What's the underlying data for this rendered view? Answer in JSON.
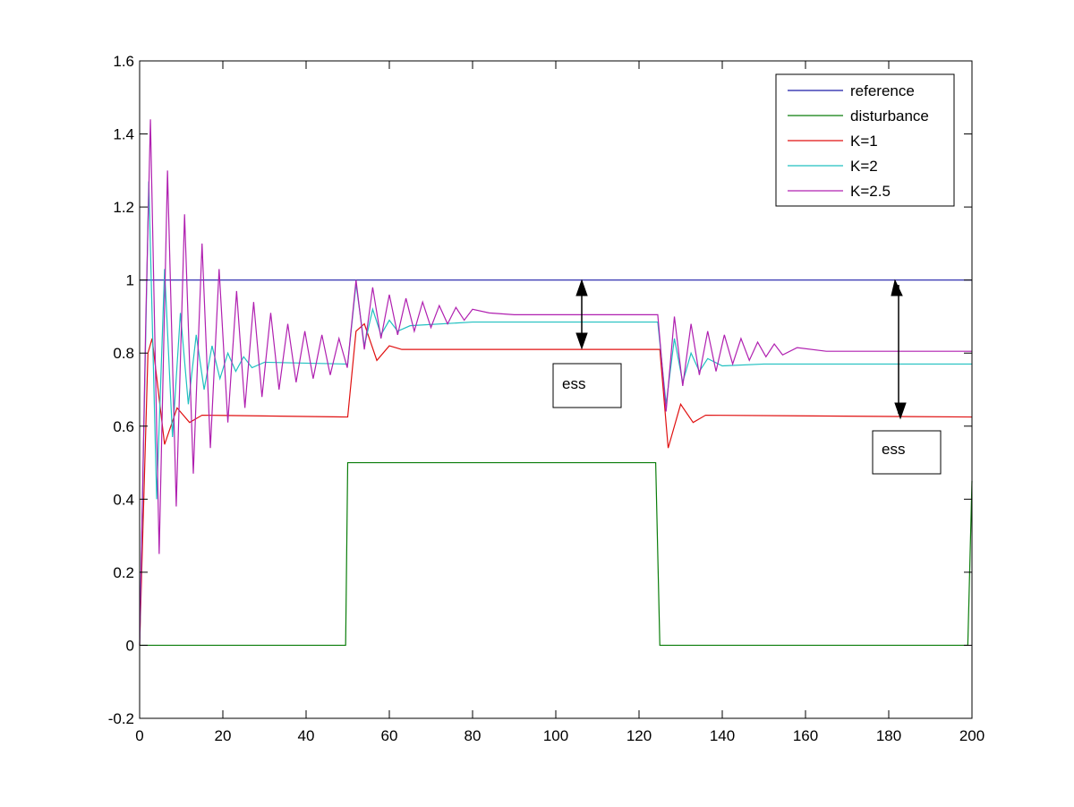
{
  "chart_data": {
    "type": "line",
    "xlim": [
      0,
      200
    ],
    "ylim": [
      -0.2,
      1.6
    ],
    "xticks": [
      0,
      20,
      40,
      60,
      80,
      100,
      120,
      140,
      160,
      180,
      200
    ],
    "yticks": [
      -0.2,
      0,
      0.2,
      0.4,
      0.6,
      0.8,
      1,
      1.2,
      1.4,
      1.6
    ],
    "legend": "northeast",
    "annotations": [
      "ess",
      "ess"
    ],
    "series": [
      {
        "name": "reference",
        "color": "#1c1ca8",
        "x": [
          0,
          200
        ],
        "values": [
          1,
          1
        ]
      },
      {
        "name": "disturbance",
        "color": "#0a7d0a",
        "x": [
          0,
          49.5,
          50,
          124,
          125,
          199,
          200
        ],
        "values": [
          0,
          0,
          0.5,
          0.5,
          0,
          0,
          0.45
        ]
      },
      {
        "name": "K=1",
        "color": "#e01010",
        "x": [
          0,
          2,
          3,
          6,
          9,
          12,
          15,
          50,
          52,
          54,
          57,
          60,
          63,
          125,
          127,
          130,
          133,
          136,
          200
        ],
        "values": [
          0,
          0.8,
          0.84,
          0.55,
          0.65,
          0.61,
          0.63,
          0.625,
          0.86,
          0.88,
          0.78,
          0.82,
          0.81,
          0.81,
          0.54,
          0.66,
          0.61,
          0.63,
          0.625
        ]
      },
      {
        "name": "K=2",
        "color": "#20c0c0",
        "x": [
          0,
          2.2,
          4.1,
          6,
          7.9,
          9.8,
          11.7,
          13.6,
          15.5,
          17.4,
          19.3,
          21.2,
          23.1,
          25,
          27,
          30,
          50,
          52,
          54,
          56,
          58,
          60,
          62,
          65,
          80,
          124.5,
          126.5,
          128.5,
          130.5,
          132.5,
          134.5,
          136.5,
          140,
          150,
          200
        ],
        "values": [
          0,
          1.27,
          0.4,
          1.03,
          0.57,
          0.91,
          0.66,
          0.85,
          0.7,
          0.82,
          0.73,
          0.8,
          0.75,
          0.79,
          0.76,
          0.775,
          0.77,
          0.99,
          0.82,
          0.92,
          0.85,
          0.89,
          0.86,
          0.875,
          0.885,
          0.885,
          0.66,
          0.84,
          0.72,
          0.8,
          0.75,
          0.785,
          0.765,
          0.77,
          0.77
        ]
      },
      {
        "name": "K=2.5",
        "color": "#b020b0",
        "x": [
          0,
          1.5,
          2.6,
          4.7,
          6.7,
          8.8,
          10.8,
          12.9,
          15,
          17,
          19.1,
          21.2,
          23.3,
          25.3,
          27.4,
          29.4,
          31.5,
          33.5,
          35.6,
          37.6,
          39.7,
          41.7,
          43.8,
          45.8,
          47.9,
          49.9,
          52,
          54,
          56,
          58,
          60,
          62,
          64,
          66,
          68,
          70,
          72,
          74,
          76,
          78,
          80,
          84,
          90,
          124.5,
          126.5,
          128.5,
          130.5,
          132.5,
          134.5,
          136.5,
          138.5,
          140.5,
          142.5,
          144.5,
          146.5,
          148.5,
          150.5,
          152.5,
          154.5,
          158,
          165,
          200
        ],
        "values": [
          0,
          0.9,
          1.44,
          0.25,
          1.3,
          0.38,
          1.18,
          0.47,
          1.1,
          0.54,
          1.03,
          0.61,
          0.97,
          0.65,
          0.94,
          0.68,
          0.91,
          0.7,
          0.88,
          0.72,
          0.86,
          0.73,
          0.85,
          0.74,
          0.84,
          0.76,
          1,
          0.81,
          0.98,
          0.84,
          0.96,
          0.85,
          0.95,
          0.86,
          0.94,
          0.87,
          0.93,
          0.88,
          0.925,
          0.89,
          0.92,
          0.91,
          0.905,
          0.905,
          0.64,
          0.9,
          0.71,
          0.88,
          0.74,
          0.86,
          0.75,
          0.85,
          0.77,
          0.84,
          0.78,
          0.83,
          0.79,
          0.825,
          0.795,
          0.815,
          0.805,
          0.805
        ]
      }
    ]
  }
}
